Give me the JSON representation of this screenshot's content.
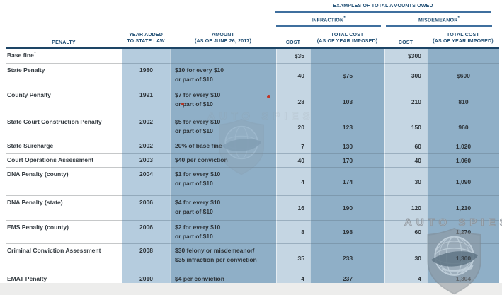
{
  "header": {
    "examples_title": "EXAMPLES OF TOTAL AMOUNTS OWED",
    "groups": [
      {
        "label": "INFRACTION",
        "sup": "*"
      },
      {
        "label": "MISDEMEANOR",
        "sup": "*"
      }
    ],
    "col_penalty": "PENALTY",
    "col_year": "YEAR ADDED\nTO STATE LAW",
    "col_amount": "AMOUNT\n(AS OF JUNE 26, 2017)",
    "col_cost_infraction": "COST",
    "col_total_infraction": "TOTAL COST\n(AS OF YEAR IMPOSED)",
    "col_cost_misdemeanor": "COST",
    "col_total_misdemeanor": "TOTAL COST\n(AS OF YEAR IMPOSED)"
  },
  "table": {
    "rows": [
      {
        "penalty": "Base fine",
        "penalty_sup": "†",
        "year": "",
        "amount": "",
        "inf_cost": "$35",
        "inf_total": "",
        "mis_cost": "$300",
        "mis_total": ""
      },
      {
        "penalty": "State Penalty",
        "year": "1980",
        "amount": "$10 for every $10\nor part of $10",
        "inf_cost": "40",
        "inf_total": "$75",
        "mis_cost": "300",
        "mis_total": "$600"
      },
      {
        "penalty": "County Penalty",
        "year": "1991",
        "amount": "$7 for every $10\nor part of $10",
        "inf_cost": "28",
        "inf_total": "103",
        "mis_cost": "210",
        "mis_total": "810"
      },
      {
        "penalty": "State Court Construction Penalty",
        "year": "2002",
        "amount": "$5 for every $10\nor part of $10",
        "inf_cost": "20",
        "inf_total": "123",
        "mis_cost": "150",
        "mis_total": "960"
      },
      {
        "penalty": "State Surcharge",
        "year": "2002",
        "amount": "20% of base fine",
        "inf_cost": "7",
        "inf_total": "130",
        "mis_cost": "60",
        "mis_total": "1,020"
      },
      {
        "penalty": "Court Operations Assessment",
        "year": "2003",
        "amount": "$40 per conviction",
        "inf_cost": "40",
        "inf_total": "170",
        "mis_cost": "40",
        "mis_total": "1,060"
      },
      {
        "penalty": "DNA Penalty (county)",
        "year": "2004",
        "amount": "$1 for every $10\nor part of $10",
        "inf_cost": "4",
        "inf_total": "174",
        "mis_cost": "30",
        "mis_total": "1,090"
      },
      {
        "penalty": "DNA Penalty (state)",
        "year": "2006",
        "amount": "$4 for every $10\nor part of $10",
        "inf_cost": "16",
        "inf_total": "190",
        "mis_cost": "120",
        "mis_total": "1,210"
      },
      {
        "penalty": "EMS Penalty (county)",
        "year": "2006",
        "amount": "$2 for every $10\nor part of $10",
        "inf_cost": "8",
        "inf_total": "198",
        "mis_cost": "60",
        "mis_total": "1,270"
      },
      {
        "penalty": "Criminal Conviction Assessment",
        "year": "2008",
        "amount": "$30 felony or misdemeanor/\n$35 infraction per conviction",
        "inf_cost": "35",
        "inf_total": "233",
        "mis_cost": "30",
        "mis_total": "1,300"
      },
      {
        "penalty": "EMAT Penalty",
        "year": "2010",
        "amount": "$4 per conviction",
        "inf_cost": "4",
        "inf_total": "237",
        "mis_cost": "4",
        "mis_total": "1,304"
      }
    ]
  },
  "watermark": {
    "text": "AUTO SPIES"
  },
  "colors": {
    "header_navy": "#1d4c72",
    "rule_navy": "#1d4566",
    "rule_steel": "#3f6f9e",
    "cell_light_blue": "#c5d6e3",
    "cell_year_blue": "#b5ccde",
    "cell_medium_blue": "#8fafc7",
    "red_dot": "#c23526"
  }
}
